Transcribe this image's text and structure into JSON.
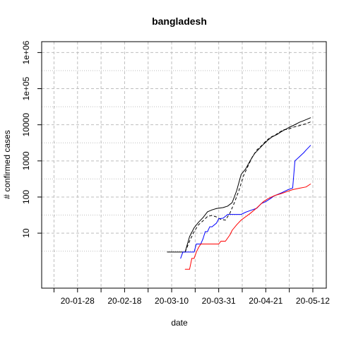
{
  "chart_data": {
    "type": "line",
    "title": "bangladesh",
    "xlabel": "date",
    "ylabel": "# confirmed cases",
    "scale_y": "log10",
    "xlim": [
      "2020-01-12",
      "2020-05-18"
    ],
    "ylim": [
      0.3,
      2000000
    ],
    "x_ticks": [
      "20-01-28",
      "20-02-18",
      "20-03-10",
      "20-03-31",
      "20-04-21",
      "20-05-12"
    ],
    "y_ticks": [
      "10",
      "100",
      "1000",
      "10000",
      "1e+05",
      "1e+06"
    ],
    "grid": true,
    "legend": "none",
    "colors": {
      "axis": "#000000",
      "grid": "#bebebe"
    },
    "series": [
      {
        "color": "#000000",
        "dash": "solid",
        "points": [
          [
            "2020-03-08",
            3
          ],
          [
            "2020-03-16",
            3
          ],
          [
            "2020-03-18",
            8
          ],
          [
            "2020-03-20",
            14
          ],
          [
            "2020-03-22",
            20
          ],
          [
            "2020-03-24",
            27
          ],
          [
            "2020-03-26",
            39
          ],
          [
            "2020-03-28",
            44
          ],
          [
            "2020-03-30",
            48
          ],
          [
            "2020-04-02",
            51
          ],
          [
            "2020-04-04",
            56
          ],
          [
            "2020-04-06",
            70
          ],
          [
            "2020-04-08",
            150
          ],
          [
            "2020-04-10",
            420
          ],
          [
            "2020-04-12",
            600
          ],
          [
            "2020-04-14",
            1000
          ],
          [
            "2020-04-16",
            1600
          ],
          [
            "2020-04-18",
            2150
          ],
          [
            "2020-04-20",
            2900
          ],
          [
            "2020-04-22",
            3800
          ],
          [
            "2020-04-24",
            4700
          ],
          [
            "2020-04-26",
            5400
          ],
          [
            "2020-04-28",
            6500
          ],
          [
            "2020-04-30",
            7600
          ],
          [
            "2020-05-02",
            8800
          ],
          [
            "2020-05-04",
            10100
          ],
          [
            "2020-05-06",
            11700
          ],
          [
            "2020-05-08",
            13100
          ],
          [
            "2020-05-10",
            14700
          ],
          [
            "2020-05-11",
            15700
          ]
        ]
      },
      {
        "color": "#000000",
        "dash": "dashed",
        "points": [
          [
            "2020-03-16",
            3
          ],
          [
            "2020-03-18",
            6
          ],
          [
            "2020-03-20",
            11
          ],
          [
            "2020-03-22",
            17
          ],
          [
            "2020-03-24",
            22
          ],
          [
            "2020-03-26",
            29
          ],
          [
            "2020-03-28",
            31
          ],
          [
            "2020-03-30",
            28
          ],
          [
            "2020-04-01",
            24
          ],
          [
            "2020-04-03",
            23
          ],
          [
            "2020-04-05",
            36
          ],
          [
            "2020-04-07",
            70
          ],
          [
            "2020-04-09",
            150
          ],
          [
            "2020-04-11",
            380
          ],
          [
            "2020-04-13",
            700
          ],
          [
            "2020-04-15",
            1300
          ],
          [
            "2020-04-17",
            2000
          ],
          [
            "2020-04-19",
            2600
          ],
          [
            "2020-04-21",
            3500
          ],
          [
            "2020-04-23",
            4500
          ],
          [
            "2020-04-25",
            5100
          ],
          [
            "2020-04-27",
            6200
          ],
          [
            "2020-04-29",
            7300
          ],
          [
            "2020-05-01",
            7500
          ],
          [
            "2020-05-03",
            8500
          ],
          [
            "2020-05-05",
            9100
          ],
          [
            "2020-05-07",
            9900
          ],
          [
            "2020-05-09",
            10700
          ],
          [
            "2020-05-11",
            12000
          ]
        ]
      },
      {
        "color": "#0000ff",
        "dash": "solid",
        "points": [
          [
            "2020-03-14",
            2
          ],
          [
            "2020-03-15",
            3
          ],
          [
            "2020-03-20",
            3
          ],
          [
            "2020-03-21",
            5
          ],
          [
            "2020-03-23",
            5
          ],
          [
            "2020-03-24",
            7
          ],
          [
            "2020-03-25",
            11
          ],
          [
            "2020-03-26",
            11
          ],
          [
            "2020-03-27",
            15
          ],
          [
            "2020-03-28",
            15
          ],
          [
            "2020-03-30",
            19
          ],
          [
            "2020-03-31",
            25
          ],
          [
            "2020-04-02",
            26
          ],
          [
            "2020-04-04",
            33
          ],
          [
            "2020-04-10",
            33
          ],
          [
            "2020-04-12",
            38
          ],
          [
            "2020-04-14",
            42
          ],
          [
            "2020-04-17",
            49
          ],
          [
            "2020-04-19",
            66
          ],
          [
            "2020-04-21",
            75
          ],
          [
            "2020-04-23",
            90
          ],
          [
            "2020-04-25",
            110
          ],
          [
            "2020-04-28",
            130
          ],
          [
            "2020-05-01",
            160
          ],
          [
            "2020-05-03",
            178
          ],
          [
            "2020-05-04",
            1000
          ],
          [
            "2020-05-06",
            1300
          ],
          [
            "2020-05-08",
            1700
          ],
          [
            "2020-05-09",
            2000
          ],
          [
            "2020-05-11",
            2700
          ]
        ]
      },
      {
        "color": "#ff0000",
        "dash": "solid",
        "points": [
          [
            "2020-03-16",
            1
          ],
          [
            "2020-03-18",
            1
          ],
          [
            "2020-03-19",
            2
          ],
          [
            "2020-03-20",
            2
          ],
          [
            "2020-03-21",
            3
          ],
          [
            "2020-03-22",
            4
          ],
          [
            "2020-03-23",
            5
          ],
          [
            "2020-03-31",
            5
          ],
          [
            "2020-04-01",
            6
          ],
          [
            "2020-04-03",
            6
          ],
          [
            "2020-04-05",
            9
          ],
          [
            "2020-04-06",
            12
          ],
          [
            "2020-04-08",
            17
          ],
          [
            "2020-04-10",
            23
          ],
          [
            "2020-04-14",
            35
          ],
          [
            "2020-04-17",
            50
          ],
          [
            "2020-04-20",
            75
          ],
          [
            "2020-04-22",
            90
          ],
          [
            "2020-04-25",
            110
          ],
          [
            "2020-04-28",
            125
          ],
          [
            "2020-05-01",
            145
          ],
          [
            "2020-05-03",
            160
          ],
          [
            "2020-05-06",
            175
          ],
          [
            "2020-05-09",
            190
          ],
          [
            "2020-05-11",
            230
          ]
        ]
      }
    ]
  }
}
